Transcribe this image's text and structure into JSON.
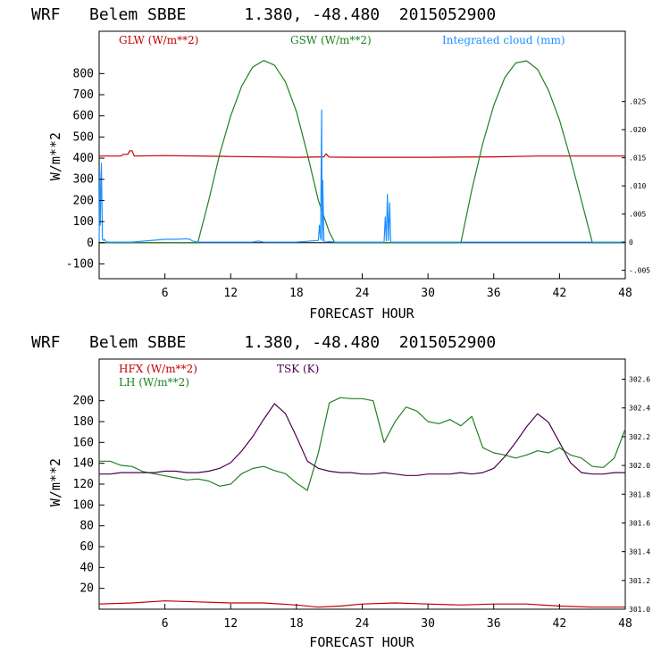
{
  "chart_data": [
    {
      "type": "line",
      "title": "WRF   Belem SBBE      1.380, -48.480  2015052900",
      "xlabel": "FORECAST HOUR",
      "ylabel": "W/m**2",
      "xlim": [
        0,
        48
      ],
      "ylim": [
        -170,
        1000
      ],
      "x_ticks": [
        6,
        12,
        18,
        24,
        30,
        36,
        42,
        48
      ],
      "y_ticks": [
        -100,
        0,
        100,
        200,
        300,
        400,
        500,
        600,
        700,
        800
      ],
      "y2_ticks": [
        ".025",
        ".020",
        ".015",
        ".010",
        ".005",
        "0",
        "-.005"
      ],
      "y2_values": [
        0.025,
        0.02,
        0.015,
        0.01,
        0.005,
        0,
        -0.005
      ],
      "y2lim": [
        -0.0065,
        0.0375
      ],
      "series": [
        {
          "name": "GLW (W/m**2)",
          "color": "#c00000",
          "axis": "left",
          "x": [
            0,
            2,
            2.2,
            2.6,
            2.8,
            3,
            3.2,
            6,
            12,
            18,
            20.5,
            20.7,
            21,
            24,
            30,
            36,
            40,
            42,
            48
          ],
          "values": [
            410,
            410,
            418,
            418,
            435,
            435,
            410,
            412,
            408,
            404,
            406,
            420,
            405,
            404,
            404,
            406,
            410,
            410,
            410
          ]
        },
        {
          "name": "GSW (W/m**2)",
          "color": "#208020",
          "axis": "left",
          "x": [
            0,
            9,
            10,
            11,
            12,
            13,
            14,
            15,
            16,
            17,
            18,
            19,
            20,
            21,
            21.5,
            33,
            34,
            35,
            36,
            37,
            38,
            39,
            40,
            41,
            42,
            43,
            44,
            45,
            48
          ],
          "values": [
            0,
            0,
            200,
            420,
            600,
            740,
            830,
            862,
            840,
            760,
            620,
            420,
            200,
            50,
            0,
            0,
            250,
            470,
            650,
            780,
            850,
            860,
            820,
            720,
            580,
            400,
            200,
            0,
            0
          ]
        },
        {
          "name": "Integrated cloud (mm)",
          "color": "#1e90ff",
          "axis": "right",
          "x": [
            0,
            0.05,
            0.1,
            0.2,
            0.3,
            0.4,
            0.5,
            0.6,
            0.7,
            0.9,
            1.2,
            1.5,
            2,
            3,
            6,
            7,
            8,
            8.3,
            8.5,
            9,
            10,
            14,
            14.5,
            15,
            18,
            20,
            20.1,
            20.2,
            20.3,
            20.35,
            20.4,
            20.5,
            20.6,
            21,
            21.5,
            26,
            26.1,
            26.2,
            26.3,
            26.4,
            26.5,
            26.6,
            27,
            30,
            40,
            48
          ],
          "values": [
            0.0001,
            0.0125,
            0.003,
            0.014,
            0.0005,
            0.0003,
            0.0005,
            0.0001,
            0,
            0,
            0,
            0,
            0,
            0,
            0.0005,
            0.0005,
            0.0006,
            0.0005,
            0.0002,
            0,
            0,
            0,
            0.0002,
            0,
            0,
            0.0003,
            0.003,
            0.0005,
            0.0235,
            0.0002,
            0.011,
            0.0003,
            0,
            0.0001,
            0,
            0,
            0.0045,
            0.0002,
            0.0085,
            0.0003,
            0.007,
            0,
            0,
            0,
            0,
            0
          ]
        }
      ]
    },
    {
      "type": "line",
      "title": "WRF   Belem SBBE      1.380, -48.480  2015052900",
      "xlabel": "FORECAST HOUR",
      "ylabel": "W/m**2",
      "xlim": [
        0,
        48
      ],
      "ylim": [
        0,
        240
      ],
      "x_ticks": [
        6,
        12,
        18,
        24,
        30,
        36,
        42,
        48
      ],
      "y_ticks": [
        20,
        40,
        60,
        80,
        100,
        120,
        140,
        160,
        180,
        200
      ],
      "y2_ticks": [
        "302.6",
        "302.4",
        "302.2",
        "302.0",
        "301.8",
        "301.6",
        "301.4",
        "301.2",
        "301.0"
      ],
      "y2_values": [
        302.6,
        302.4,
        302.2,
        302.0,
        301.8,
        301.6,
        301.4,
        301.2,
        301.0
      ],
      "y2lim": [
        301.0,
        302.74
      ],
      "series": [
        {
          "name": "HFX (W/m**2)",
          "color": "#c00000",
          "axis": "left",
          "x": [
            0,
            3,
            6,
            9,
            12,
            15,
            18,
            20,
            22,
            24,
            27,
            30,
            33,
            36,
            39,
            42,
            45,
            48
          ],
          "values": [
            5,
            6,
            8,
            7,
            6,
            6,
            4,
            2,
            3,
            5,
            6,
            5,
            4,
            5,
            5,
            3,
            2,
            2
          ]
        },
        {
          "name": "LH (W/m**2)",
          "color": "#208020",
          "axis": "left",
          "x": [
            0,
            1,
            2,
            3,
            4,
            5,
            6,
            7,
            8,
            9,
            10,
            11,
            12,
            13,
            14,
            15,
            16,
            17,
            18,
            19,
            20,
            21,
            22,
            23,
            24,
            25,
            26,
            27,
            28,
            29,
            30,
            31,
            32,
            33,
            34,
            35,
            36,
            37,
            38,
            39,
            40,
            41,
            42,
            43,
            44,
            45,
            46,
            47,
            48
          ],
          "values": [
            142,
            142,
            138,
            137,
            132,
            130,
            128,
            126,
            124,
            125,
            123,
            118,
            120,
            130,
            135,
            137,
            133,
            130,
            121,
            114,
            150,
            198,
            203,
            202,
            202,
            200,
            160,
            180,
            194,
            190,
            180,
            178,
            182,
            176,
            185,
            155,
            150,
            148,
            145,
            148,
            152,
            150,
            155,
            148,
            145,
            137,
            136,
            145,
            173
          ]
        },
        {
          "name": "TSK (K)",
          "color": "#4b0050",
          "axis": "right",
          "x": [
            0,
            1,
            2,
            3,
            4,
            5,
            6,
            7,
            8,
            9,
            10,
            11,
            12,
            13,
            14,
            15,
            16,
            17,
            18,
            19,
            20,
            21,
            22,
            23,
            24,
            25,
            26,
            27,
            28,
            29,
            30,
            31,
            32,
            33,
            34,
            35,
            36,
            37,
            38,
            39,
            40,
            41,
            42,
            43,
            44,
            45,
            46,
            47,
            48
          ],
          "values": [
            301.94,
            301.94,
            301.95,
            301.95,
            301.95,
            301.95,
            301.96,
            301.96,
            301.95,
            301.95,
            301.96,
            301.98,
            302.02,
            302.1,
            302.2,
            302.32,
            302.43,
            302.36,
            302.2,
            302.03,
            301.98,
            301.96,
            301.95,
            301.95,
            301.94,
            301.94,
            301.95,
            301.94,
            301.93,
            301.93,
            301.94,
            301.94,
            301.94,
            301.95,
            301.94,
            301.95,
            301.98,
            302.06,
            302.16,
            302.27,
            302.36,
            302.3,
            302.16,
            302.02,
            301.95,
            301.94,
            301.94,
            301.95,
            301.95
          ]
        }
      ]
    }
  ]
}
